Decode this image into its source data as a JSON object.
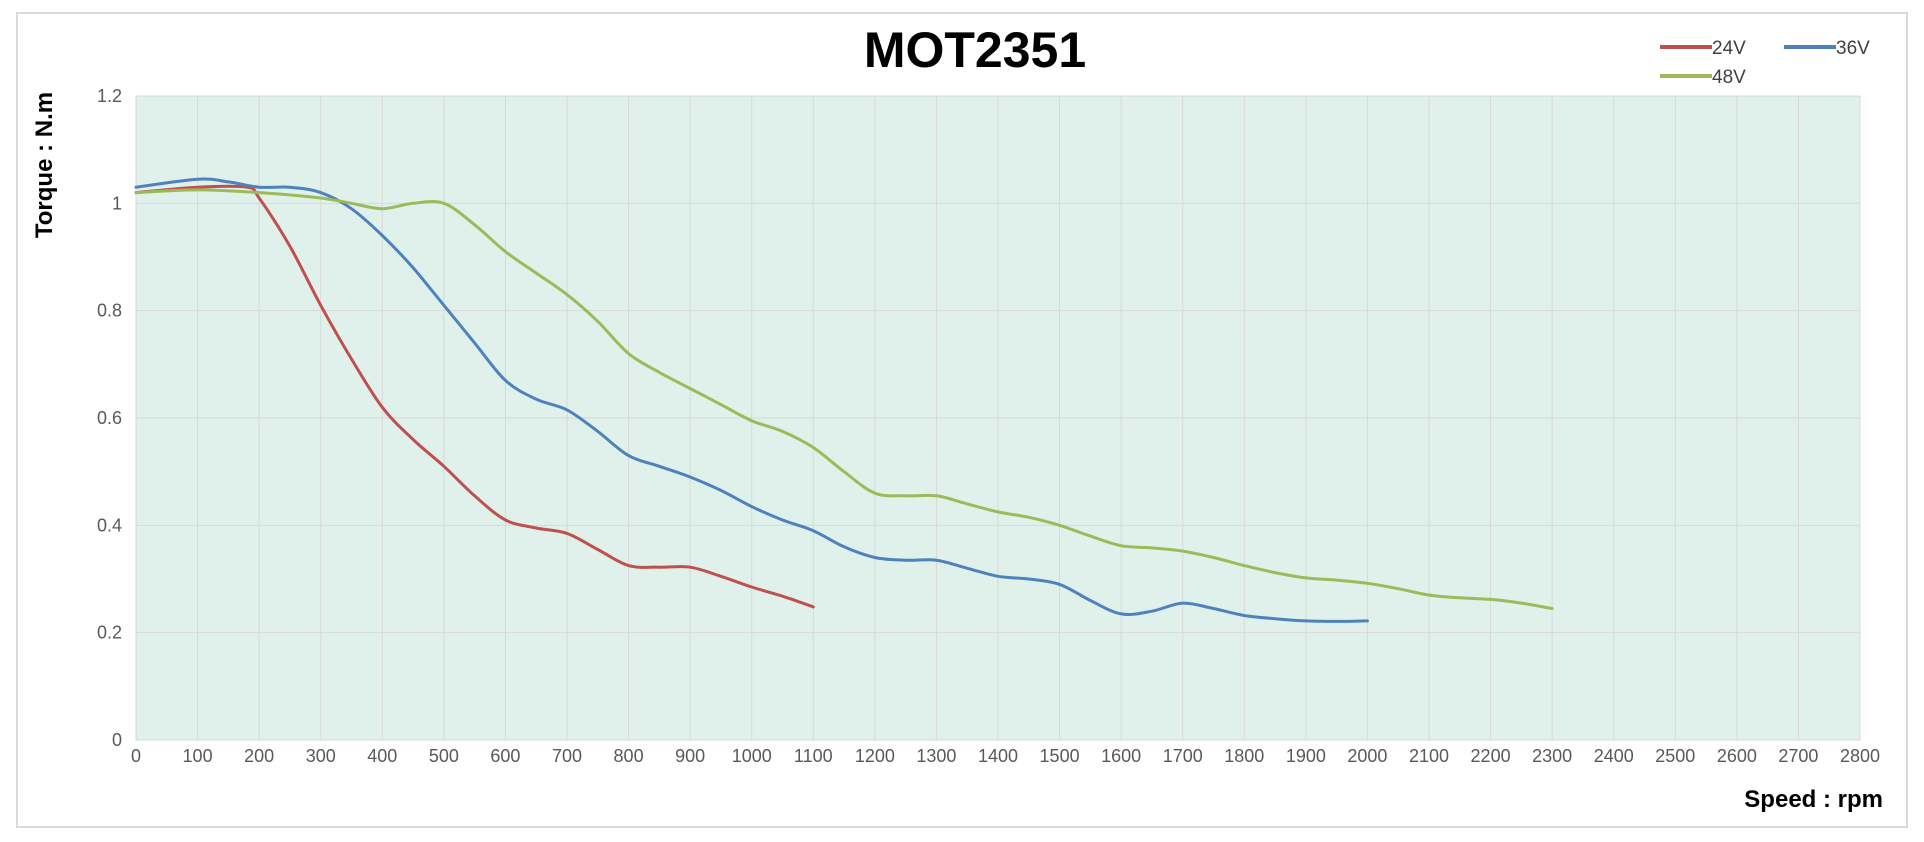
{
  "chart_data": {
    "type": "line",
    "title": "MOT2351",
    "xlabel": "Speed : rpm",
    "ylabel": "Torque : N.m",
    "xlim": [
      0,
      2800
    ],
    "ylim": [
      0,
      1.2
    ],
    "x_ticks": [
      0,
      100,
      200,
      300,
      400,
      500,
      600,
      700,
      800,
      900,
      1000,
      1100,
      1200,
      1300,
      1400,
      1500,
      1600,
      1700,
      1800,
      1900,
      2000,
      2100,
      2200,
      2300,
      2400,
      2500,
      2600,
      2700,
      2800
    ],
    "y_ticks": [
      0,
      0.2,
      0.4,
      0.6,
      0.8,
      1,
      1.2
    ],
    "grid": true,
    "legend_position": "top-right",
    "colors": {
      "plot_background": "#dff1ea",
      "grid": "#d8d8d8"
    },
    "series": [
      {
        "name": "24V",
        "color": "#c0504d",
        "x": [
          0,
          100,
          180,
          200,
          250,
          300,
          350,
          400,
          450,
          500,
          550,
          600,
          650,
          700,
          750,
          800,
          850,
          900,
          950,
          1000,
          1050,
          1100
        ],
        "y": [
          1.02,
          1.03,
          1.03,
          1.01,
          0.92,
          0.81,
          0.71,
          0.62,
          0.56,
          0.51,
          0.455,
          0.41,
          0.395,
          0.385,
          0.355,
          0.325,
          0.322,
          0.322,
          0.305,
          0.285,
          0.268,
          0.248
        ]
      },
      {
        "name": "36V",
        "color": "#4f81bd",
        "x": [
          0,
          100,
          150,
          200,
          250,
          300,
          350,
          400,
          450,
          500,
          550,
          600,
          650,
          700,
          750,
          800,
          850,
          900,
          950,
          1000,
          1050,
          1100,
          1150,
          1200,
          1250,
          1300,
          1350,
          1400,
          1450,
          1500,
          1550,
          1600,
          1650,
          1700,
          1750,
          1800,
          1850,
          1900,
          1950,
          2000
        ],
        "y": [
          1.03,
          1.045,
          1.04,
          1.03,
          1.03,
          1.02,
          0.99,
          0.94,
          0.88,
          0.81,
          0.74,
          0.67,
          0.635,
          0.615,
          0.575,
          0.53,
          0.51,
          0.49,
          0.465,
          0.435,
          0.41,
          0.39,
          0.36,
          0.34,
          0.335,
          0.335,
          0.32,
          0.305,
          0.3,
          0.29,
          0.26,
          0.235,
          0.24,
          0.255,
          0.245,
          0.232,
          0.226,
          0.222,
          0.221,
          0.222
        ]
      },
      {
        "name": "48V",
        "color": "#9bbb59",
        "x": [
          0,
          100,
          200,
          300,
          350,
          400,
          450,
          500,
          550,
          600,
          650,
          700,
          750,
          800,
          850,
          900,
          950,
          1000,
          1050,
          1100,
          1150,
          1200,
          1250,
          1300,
          1350,
          1400,
          1450,
          1500,
          1550,
          1600,
          1650,
          1700,
          1750,
          1800,
          1850,
          1900,
          1950,
          2000,
          2050,
          2100,
          2150,
          2200,
          2250,
          2300
        ],
        "y": [
          1.02,
          1.025,
          1.02,
          1.01,
          1.0,
          0.99,
          1.0,
          1.0,
          0.96,
          0.91,
          0.87,
          0.83,
          0.78,
          0.72,
          0.685,
          0.655,
          0.625,
          0.595,
          0.575,
          0.545,
          0.5,
          0.46,
          0.455,
          0.455,
          0.44,
          0.425,
          0.415,
          0.4,
          0.38,
          0.362,
          0.358,
          0.352,
          0.34,
          0.325,
          0.312,
          0.302,
          0.298,
          0.292,
          0.282,
          0.27,
          0.265,
          0.262,
          0.255,
          0.245
        ]
      }
    ]
  }
}
